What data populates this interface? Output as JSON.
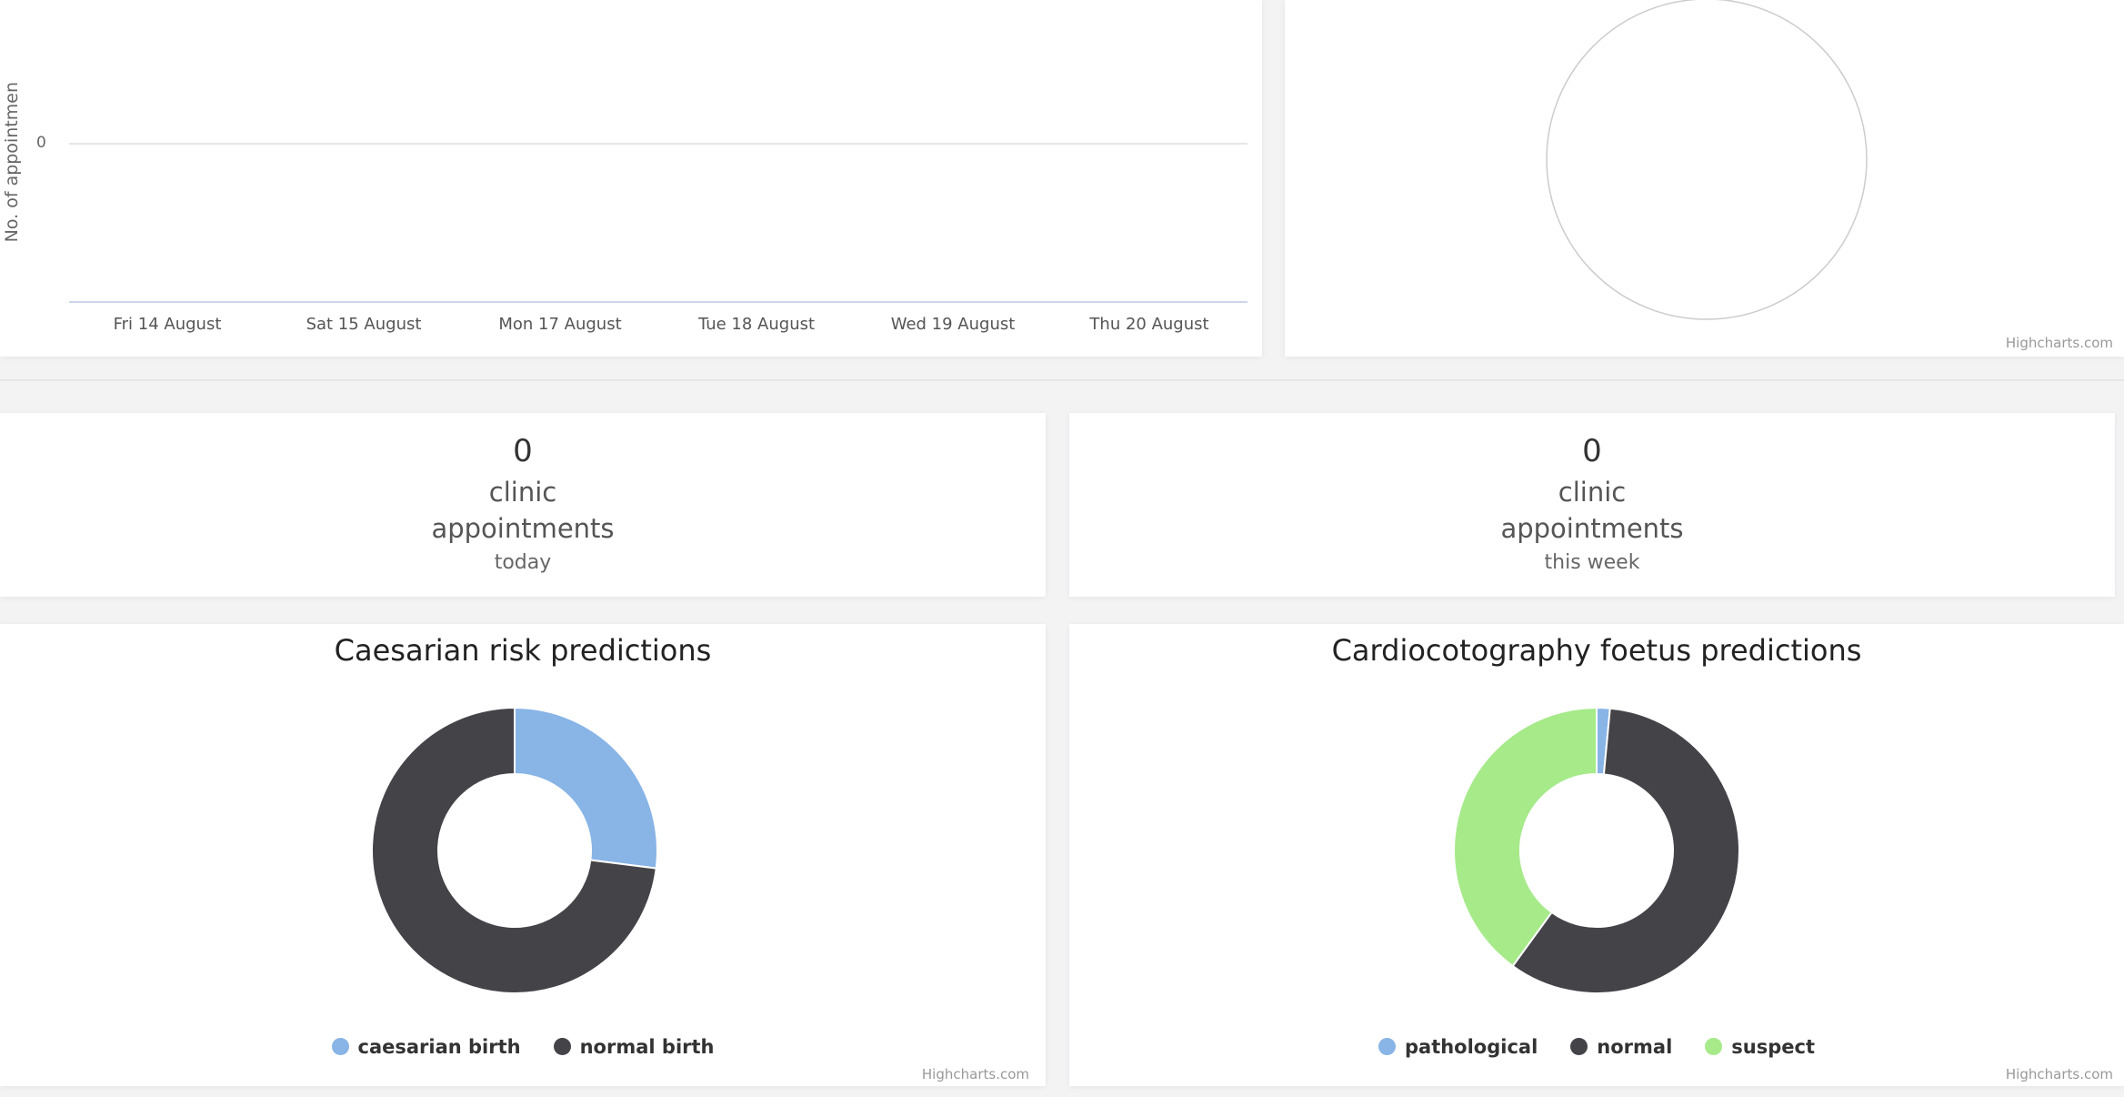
{
  "appointments_chart": {
    "y_axis_title": "No. of appointmen",
    "y_tick": "0",
    "x_ticks": [
      "Fri 14 August",
      "Sat 15 August",
      "Mon 17 August",
      "Tue 18 August",
      "Wed 19 August",
      "Thu 20 August"
    ]
  },
  "credits": "Highcharts.com",
  "stats": {
    "today": {
      "count": "0",
      "line1": "clinic",
      "line2": "appointments",
      "line3": "today"
    },
    "week": {
      "count": "0",
      "line1": "clinic",
      "line2": "appointments",
      "line3": "this week"
    }
  },
  "chart_data": [
    {
      "type": "line",
      "title": "",
      "ylabel": "No. of appointmen",
      "categories": [
        "Fri 14 August",
        "Sat 15 August",
        "Mon 17 August",
        "Tue 18 August",
        "Wed 19 August",
        "Thu 20 August"
      ],
      "series": [
        {
          "values": [
            0,
            0,
            0,
            0,
            0,
            0
          ]
        }
      ]
    },
    {
      "type": "pie",
      "title": "",
      "slices": []
    },
    {
      "type": "pie",
      "title": "Caesarian risk predictions",
      "slices": [
        {
          "label": "caesarian birth",
          "value": 27,
          "color": "#88b4e6"
        },
        {
          "label": "normal birth",
          "value": 73,
          "color": "#434348"
        }
      ]
    },
    {
      "type": "pie",
      "title": "Cardiocotography foetus predictions",
      "slices": [
        {
          "label": "pathological",
          "value": 1.5,
          "color": "#88b4e6"
        },
        {
          "label": "normal",
          "value": 58.5,
          "color": "#434348"
        },
        {
          "label": "suspect",
          "value": 40,
          "color": "#a6ea8a"
        }
      ]
    }
  ]
}
